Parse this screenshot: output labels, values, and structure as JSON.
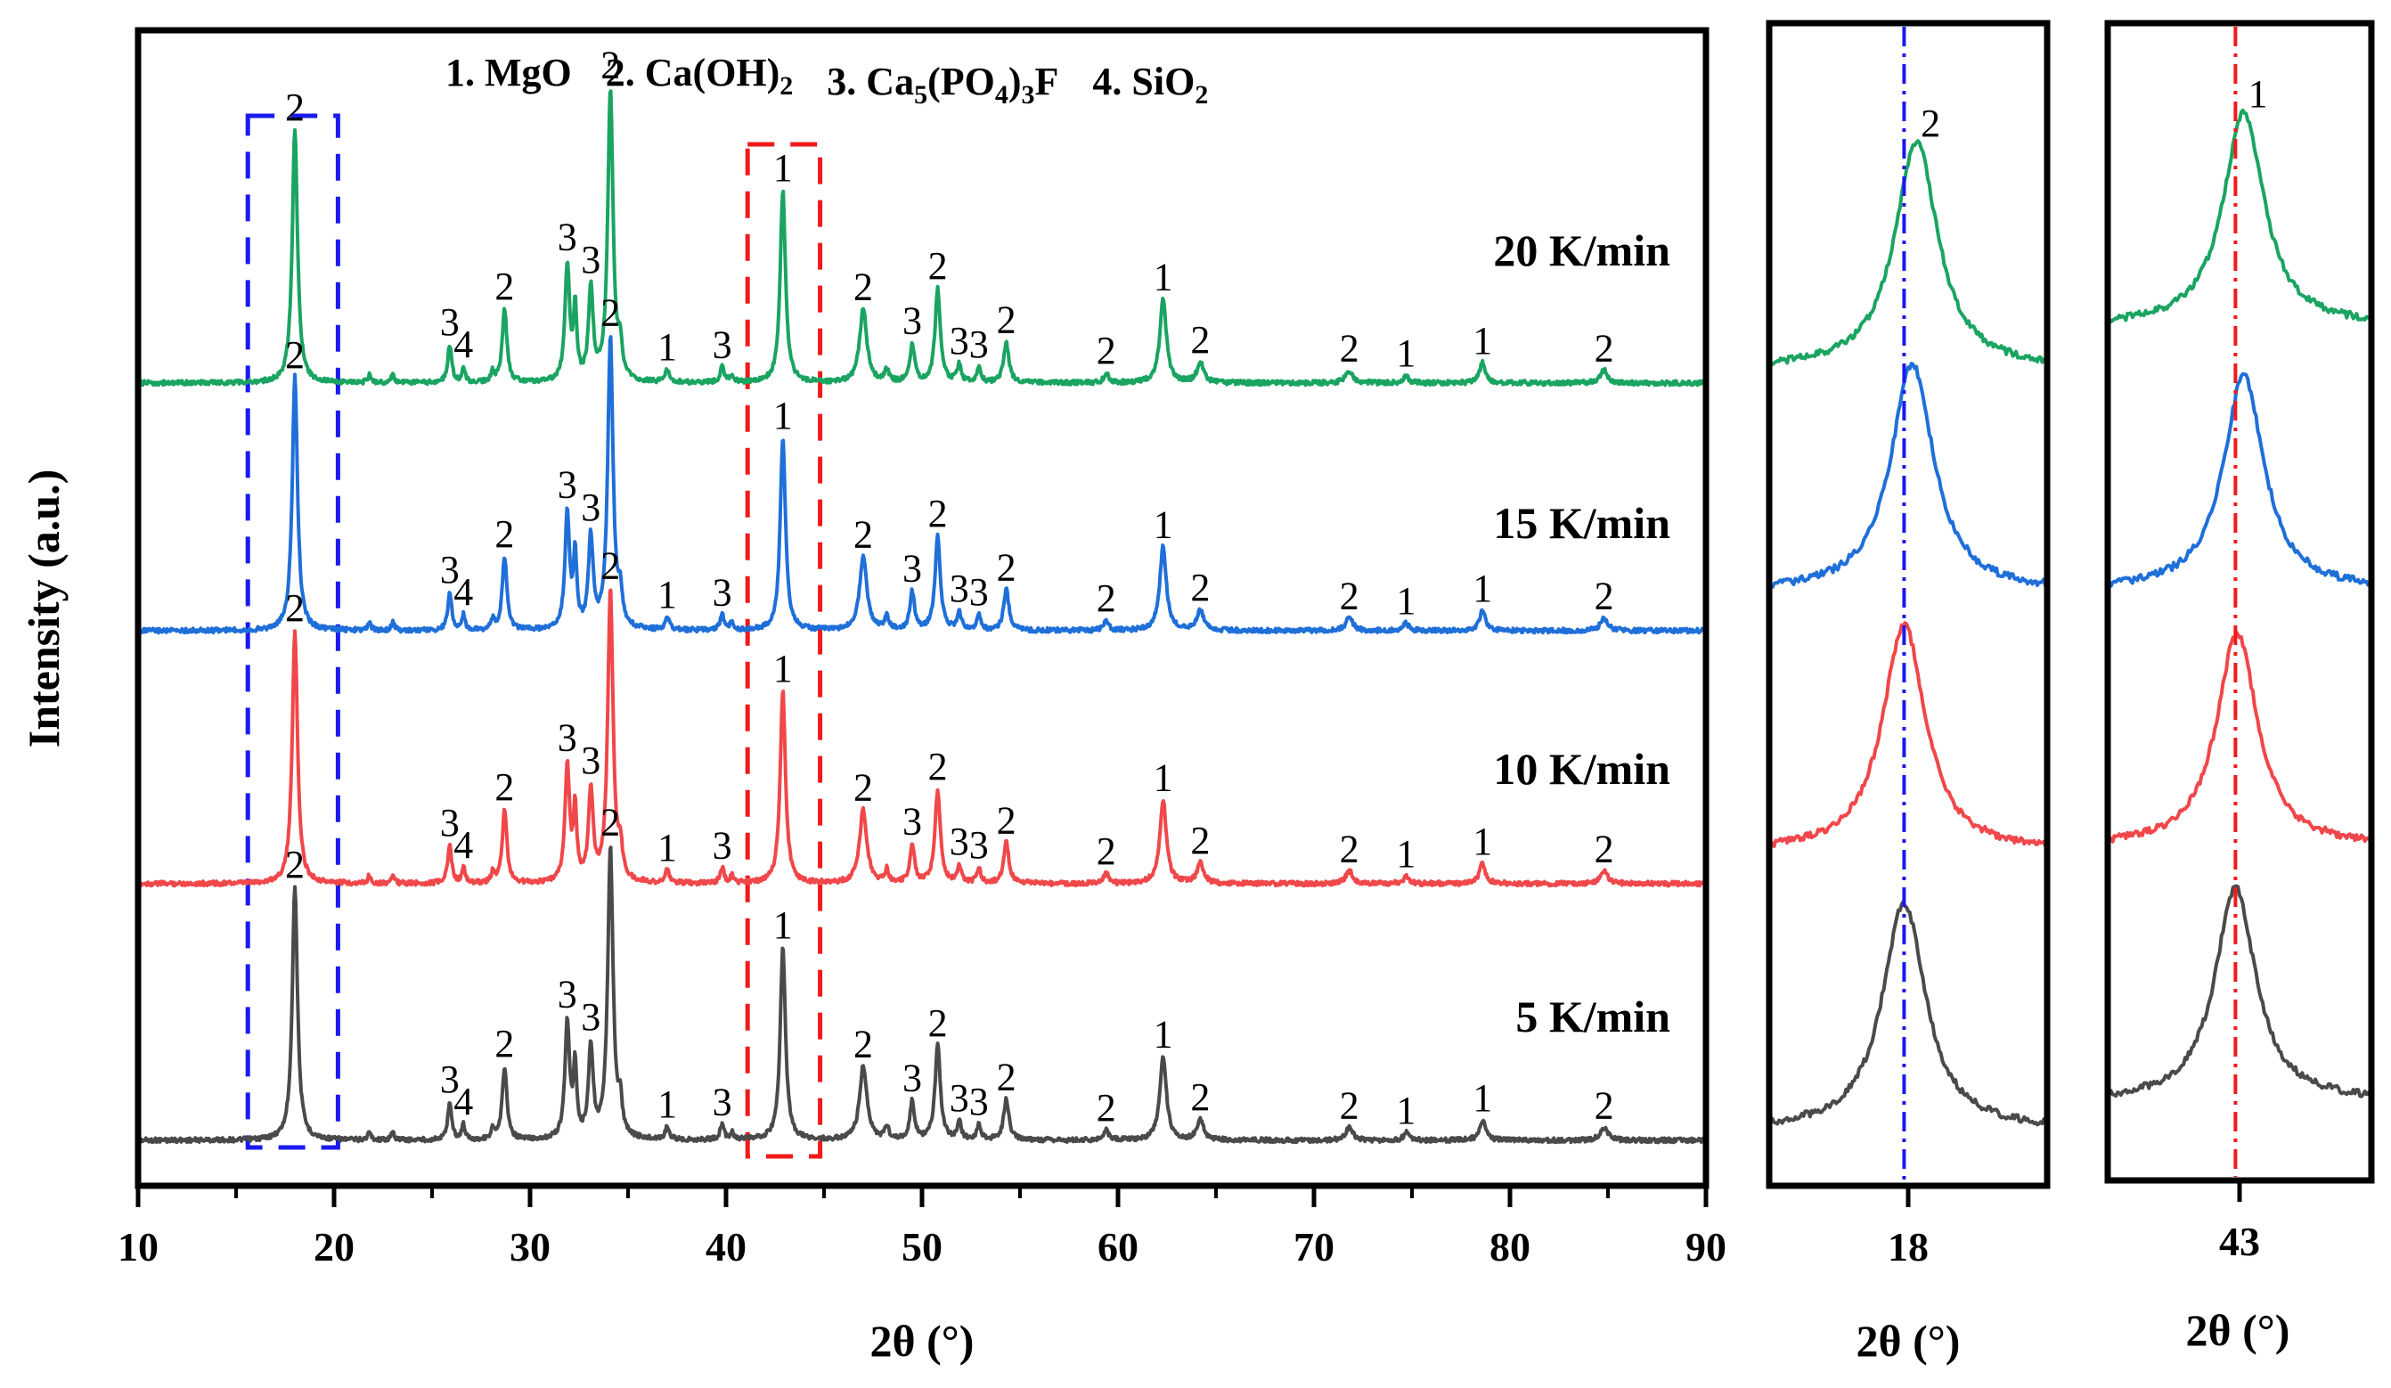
{
  "chart_data": [
    {
      "type": "line",
      "xlabel": "2θ (°)",
      "ylabel": "Intensity (a.u.)",
      "xlim": [
        10,
        90
      ],
      "xticks": [
        10,
        20,
        30,
        40,
        50,
        60,
        70,
        80,
        90
      ],
      "legend": [
        "1. MgO",
        "2. Ca(OH)",
        "3. Ca",
        "4. SiO"
      ],
      "legend_rich": [
        {
          "parts": [
            {
              "t": "1. MgO"
            }
          ]
        },
        {
          "parts": [
            {
              "t": "2. Ca(OH)"
            },
            {
              "t": "2",
              "sub": true
            }
          ]
        },
        {
          "parts": [
            {
              "t": "3. Ca"
            },
            {
              "t": "5",
              "sub": true
            },
            {
              "t": "(PO"
            },
            {
              "t": "4",
              "sub": true
            },
            {
              "t": ")"
            },
            {
              "t": "3",
              "sub": true
            },
            {
              "t": "F"
            }
          ]
        },
        {
          "parts": [
            {
              "t": "4. SiO"
            },
            {
              "t": "2",
              "sub": true
            }
          ]
        }
      ],
      "peaks": [
        {
          "x": 18.0,
          "h": 1.0,
          "w": 0.16,
          "label": "2"
        },
        {
          "x": 21.8,
          "h": 0.03,
          "w": 0.1,
          "label": ""
        },
        {
          "x": 23.0,
          "h": 0.03,
          "w": 0.1,
          "label": ""
        },
        {
          "x": 25.9,
          "h": 0.15,
          "w": 0.12,
          "label": "3"
        },
        {
          "x": 26.6,
          "h": 0.06,
          "w": 0.1,
          "label": "4"
        },
        {
          "x": 28.1,
          "h": 0.04,
          "w": 0.1,
          "label": ""
        },
        {
          "x": 28.7,
          "h": 0.29,
          "w": 0.14,
          "label": "2"
        },
        {
          "x": 31.9,
          "h": 0.46,
          "w": 0.14,
          "label": "3"
        },
        {
          "x": 32.3,
          "h": 0.28,
          "w": 0.1,
          "label": ""
        },
        {
          "x": 33.1,
          "h": 0.36,
          "w": 0.14,
          "label": "3"
        },
        {
          "x": 34.1,
          "h": 1.15,
          "w": 0.16,
          "label": "2"
        },
        {
          "x": 34.6,
          "h": 0.12,
          "w": 0.12,
          "label": ""
        },
        {
          "x": 37.0,
          "h": 0.05,
          "w": 0.12,
          "label": "1"
        },
        {
          "x": 39.8,
          "h": 0.06,
          "w": 0.12,
          "label": "3"
        },
        {
          "x": 40.3,
          "h": 0.03,
          "w": 0.1,
          "label": ""
        },
        {
          "x": 42.9,
          "h": 0.76,
          "w": 0.16,
          "label": "1"
        },
        {
          "x": 47.0,
          "h": 0.29,
          "w": 0.22,
          "label": "2"
        },
        {
          "x": 48.2,
          "h": 0.05,
          "w": 0.12,
          "label": ""
        },
        {
          "x": 49.5,
          "h": 0.15,
          "w": 0.14,
          "label": "3"
        },
        {
          "x": 50.8,
          "h": 0.37,
          "w": 0.16,
          "label": "2"
        },
        {
          "x": 51.9,
          "h": 0.07,
          "w": 0.12,
          "label": "3"
        },
        {
          "x": 52.9,
          "h": 0.06,
          "w": 0.12,
          "label": "3"
        },
        {
          "x": 54.3,
          "h": 0.16,
          "w": 0.16,
          "label": "2"
        },
        {
          "x": 59.4,
          "h": 0.04,
          "w": 0.14,
          "label": "2"
        },
        {
          "x": 62.3,
          "h": 0.33,
          "w": 0.2,
          "label": "1"
        },
        {
          "x": 64.2,
          "h": 0.08,
          "w": 0.2,
          "label": "2"
        },
        {
          "x": 71.8,
          "h": 0.05,
          "w": 0.22,
          "label": "2"
        },
        {
          "x": 74.7,
          "h": 0.03,
          "w": 0.16,
          "label": "1"
        },
        {
          "x": 78.6,
          "h": 0.08,
          "w": 0.18,
          "label": "1"
        },
        {
          "x": 84.8,
          "h": 0.05,
          "w": 0.22,
          "label": "2"
        }
      ],
      "series": [
        {
          "name": "5 K/min",
          "color": "#4a4a4a"
        },
        {
          "name": "10 K/min",
          "color": "#f0474a"
        },
        {
          "name": "15 K/min",
          "color": "#1f6fd9"
        },
        {
          "name": "20 K/min",
          "color": "#1aa461"
        }
      ],
      "highlight_boxes": [
        {
          "x0": 15.6,
          "x1": 20.2,
          "color": "#1a1af0",
          "style": "dashed"
        },
        {
          "x0": 41.1,
          "x1": 44.8,
          "color": "#f01a1a",
          "style": "dashed"
        }
      ]
    },
    {
      "type": "line",
      "xlabel": "2θ (°)",
      "xlim": [
        16.3,
        19.7
      ],
      "xticks": [
        18
      ],
      "reference_x": 17.95,
      "reference_color": "#1a1af0",
      "peak_label": "2",
      "series": [
        {
          "name": "5 K/min",
          "color": "#4a4a4a",
          "center": 17.95
        },
        {
          "name": "10 K/min",
          "color": "#f0474a",
          "center": 17.95
        },
        {
          "name": "15 K/min",
          "color": "#1f6fd9",
          "center": 18.05
        },
        {
          "name": "20 K/min",
          "color": "#1aa461",
          "center": 18.1
        }
      ]
    },
    {
      "type": "line",
      "xlabel": "2θ (°)",
      "xlim": [
        41.4,
        44.6
      ],
      "xticks": [
        43
      ],
      "reference_x": 42.95,
      "reference_color": "#f01a1a",
      "peak_label": "1",
      "series": [
        {
          "name": "5 K/min",
          "color": "#4a4a4a",
          "center": 42.95
        },
        {
          "name": "10 K/min",
          "color": "#f0474a",
          "center": 42.97
        },
        {
          "name": "15 K/min",
          "color": "#1f6fd9",
          "center": 43.05
        },
        {
          "name": "20 K/min",
          "color": "#1aa461",
          "center": 43.05
        }
      ]
    }
  ]
}
